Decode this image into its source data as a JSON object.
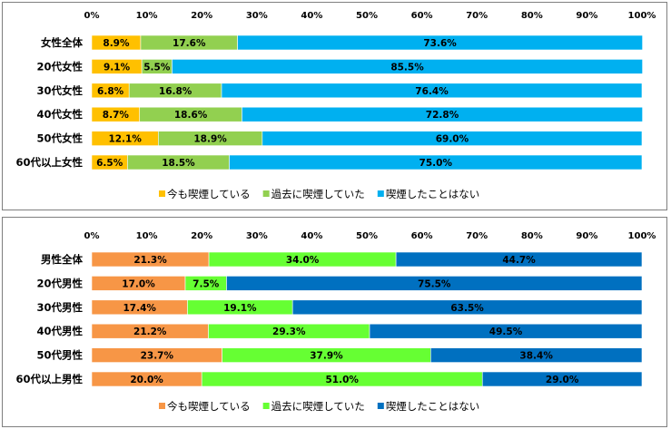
{
  "chart_data": [
    {
      "type": "bar",
      "orientation": "horizontal",
      "stacked": true,
      "xlim": [
        0,
        100
      ],
      "x_ticks": [
        "0%",
        "10%",
        "20%",
        "30%",
        "40%",
        "50%",
        "60%",
        "70%",
        "80%",
        "90%",
        "100%"
      ],
      "categories": [
        "女性全体",
        "20代女性",
        "30代女性",
        "40代女性",
        "50代女性",
        "60代以上女性"
      ],
      "series": [
        {
          "name": "今も喫煙している",
          "color": "#FFC000",
          "values": [
            8.9,
            9.1,
            6.8,
            8.7,
            12.1,
            6.5
          ]
        },
        {
          "name": "過去に喫煙していた",
          "color": "#92D050",
          "values": [
            17.6,
            5.5,
            16.8,
            18.6,
            18.9,
            18.5
          ]
        },
        {
          "name": "喫煙したことはない",
          "color": "#00B0F0",
          "values": [
            73.6,
            85.5,
            76.4,
            72.8,
            69.0,
            75.0
          ]
        }
      ],
      "legend_position": "bottom",
      "grid": false
    },
    {
      "type": "bar",
      "orientation": "horizontal",
      "stacked": true,
      "xlim": [
        0,
        100
      ],
      "x_ticks": [
        "0%",
        "10%",
        "20%",
        "30%",
        "40%",
        "50%",
        "60%",
        "70%",
        "80%",
        "90%",
        "100%"
      ],
      "categories": [
        "男性全体",
        "20代男性",
        "30代男性",
        "40代男性",
        "50代男性",
        "60代以上男性"
      ],
      "series": [
        {
          "name": "今も喫煙している",
          "color": "#F79646",
          "values": [
            21.3,
            17.0,
            17.4,
            21.2,
            23.7,
            20.0
          ]
        },
        {
          "name": "過去に喫煙していた",
          "color": "#66FF33",
          "values": [
            34.0,
            7.5,
            19.1,
            29.3,
            37.9,
            51.0
          ]
        },
        {
          "name": "喫煙したことはない",
          "color": "#0070C0",
          "values": [
            44.7,
            75.5,
            63.5,
            49.5,
            38.4,
            29.0
          ]
        }
      ],
      "legend_position": "bottom",
      "grid": false
    }
  ]
}
